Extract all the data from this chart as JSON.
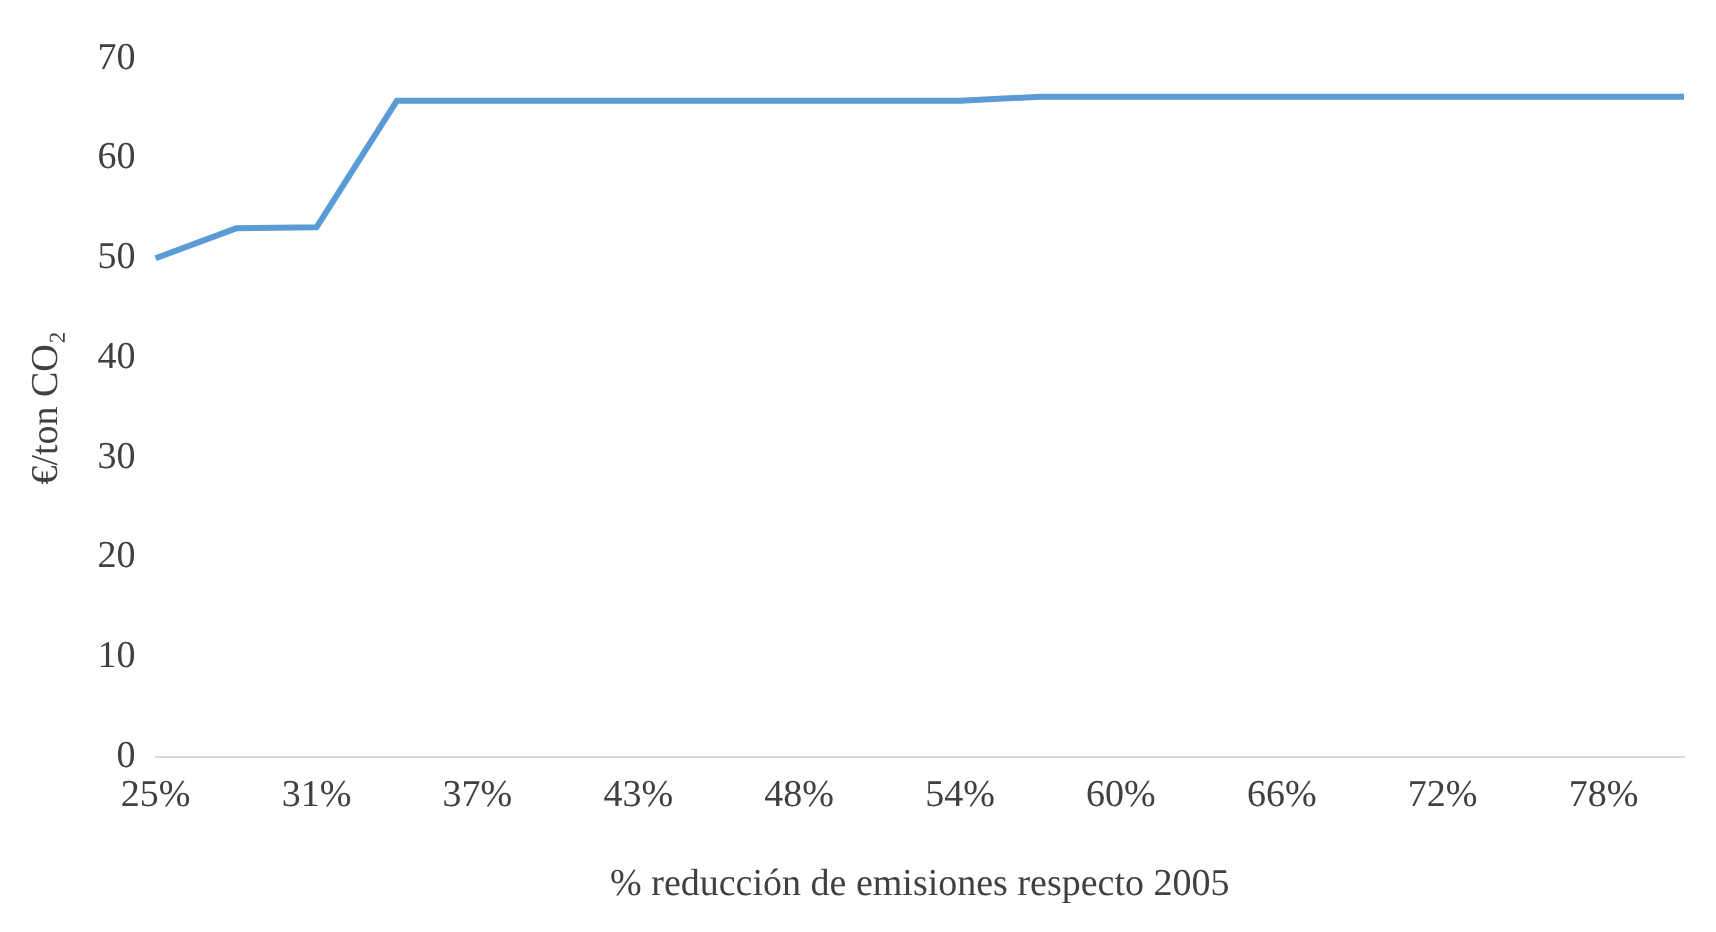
{
  "chart_data": {
    "type": "line",
    "xlabel": "% reducción de emisiones respecto 2005",
    "ylabel": "€/ton CO₂",
    "categories": [
      "25%",
      null,
      "31%",
      null,
      "37%",
      null,
      "43%",
      null,
      "48%",
      null,
      "54%",
      null,
      "60%",
      null,
      "66%",
      null,
      "72%",
      null,
      "78%",
      null
    ],
    "series": [
      {
        "color": "#5b9bd5",
        "values": [
          50,
          53,
          53.1,
          65.8,
          65.8,
          65.8,
          65.8,
          65.8,
          65.8,
          65.8,
          65.8,
          66.2,
          66.2,
          66.2,
          66.2,
          66.2,
          66.2,
          66.2,
          66.2,
          66.2
        ]
      }
    ],
    "ylim": [
      0,
      70
    ],
    "yticks": [
      0,
      10,
      20,
      30,
      40,
      50,
      60,
      70
    ],
    "grid": false,
    "legend": false,
    "marker": "none",
    "line_style": "solid"
  }
}
